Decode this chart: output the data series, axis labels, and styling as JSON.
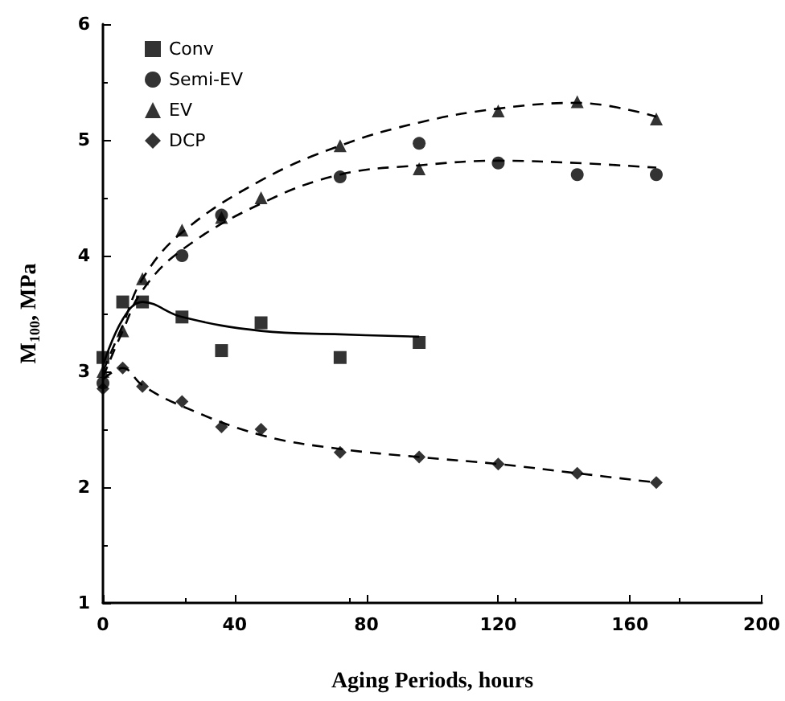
{
  "chart_data": {
    "type": "scatter",
    "xlabel": "Aging Periods, hours",
    "ylabel": "M$_{100}$, MPa",
    "xlim": [
      0,
      200
    ],
    "xticks": [
      0,
      40,
      80,
      120,
      160,
      200
    ],
    "ylim": [
      1,
      6
    ],
    "yticks": [
      1,
      2,
      3,
      4,
      5,
      6
    ],
    "grid": false,
    "legend": "top left",
    "series": [
      {
        "name": "Conv",
        "color": "#000000",
        "marker": "square",
        "x": [
          0,
          6,
          12,
          24,
          36,
          48,
          72,
          96
        ],
        "values": [
          3.12,
          3.6,
          3.6,
          3.47,
          3.18,
          3.42,
          3.12,
          3.25
        ]
      },
      {
        "name": "Semi-EV",
        "color": "#000000",
        "marker": "circle",
        "x": [
          0,
          6,
          12,
          24,
          36,
          72,
          96,
          120,
          144,
          168
        ],
        "values": [
          2.9,
          null,
          null,
          4.0,
          4.35,
          4.68,
          4.97,
          4.8,
          4.7,
          4.7
        ]
      },
      {
        "name": "EV",
        "color": "#000000",
        "marker": "triangle",
        "x": [
          0,
          6,
          12,
          24,
          36,
          48,
          72,
          96,
          120,
          144,
          168
        ],
        "values": [
          3.0,
          3.35,
          3.8,
          4.22,
          4.33,
          4.5,
          4.95,
          4.75,
          5.25,
          5.33,
          5.18
        ]
      },
      {
        "name": "DCP",
        "color": "#000000",
        "marker": "diamond",
        "x": [
          0,
          6,
          12,
          24,
          36,
          48,
          72,
          96,
          120,
          144,
          168
        ],
        "values": [
          2.85,
          3.03,
          2.87,
          2.74,
          2.52,
          2.5,
          2.3,
          2.26,
          2.2,
          2.12,
          2.04
        ]
      },
      {
        "type": "line",
        "color": "#000000",
        "marker": "none",
        "line_style": "solid",
        "x": [
          0,
          6,
          12,
          24,
          48,
          72,
          96
        ],
        "values": [
          3.05,
          3.45,
          3.6,
          3.47,
          3.35,
          3.32,
          3.3
        ]
      },
      {
        "type": "line",
        "color": "#000000",
        "marker": "none",
        "line_style": "dashed",
        "x": [
          0,
          6,
          12,
          24,
          48,
          72,
          96,
          120,
          144,
          168
        ],
        "values": [
          2.95,
          3.35,
          3.7,
          4.05,
          4.45,
          4.7,
          4.78,
          4.82,
          4.8,
          4.76
        ]
      },
      {
        "type": "line",
        "color": "#000000",
        "marker": "none",
        "line_style": "dashed",
        "x": [
          0,
          6,
          12,
          24,
          48,
          72,
          96,
          120,
          144,
          168
        ],
        "values": [
          3.0,
          3.4,
          3.8,
          4.2,
          4.65,
          4.95,
          5.15,
          5.27,
          5.32,
          5.2
        ]
      },
      {
        "type": "line",
        "color": "#000000",
        "marker": "none",
        "line_style": "dashed",
        "x": [
          0,
          6,
          12,
          24,
          48,
          72,
          96,
          120,
          144,
          168
        ],
        "values": [
          2.93,
          3.03,
          2.88,
          2.7,
          2.45,
          2.33,
          2.26,
          2.2,
          2.12,
          2.04
        ]
      }
    ]
  }
}
